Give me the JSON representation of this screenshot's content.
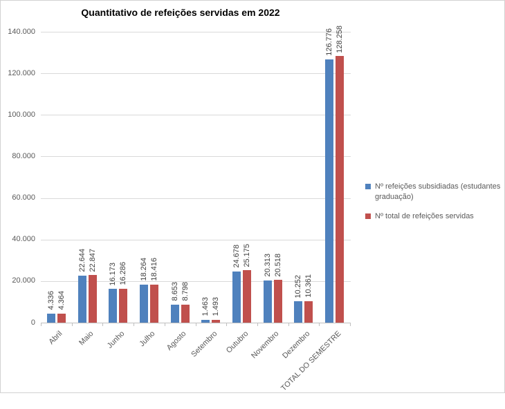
{
  "chart_data": {
    "type": "bar",
    "title": "Quantitativo de refeições servidas em 2022",
    "categories": [
      "Abril",
      "Maio",
      "Junho",
      "Julho",
      "Agosto",
      "Setembro",
      "Outubro",
      "Novembro",
      "Dezembro",
      "TOTAL DO SEMESTRE"
    ],
    "series": [
      {
        "name": "Nº refeições subsidiadas (estudantes graduação)",
        "color": "#4F81BD",
        "values": [
          4336,
          22644,
          16173,
          18264,
          8653,
          1463,
          24678,
          20313,
          10252,
          126776
        ],
        "labels": [
          "4.336",
          "22.644",
          "16.173",
          "18.264",
          "8.653",
          "1.463",
          "24.678",
          "20.313",
          "10.252",
          "126.776"
        ]
      },
      {
        "name": "Nº total de refeições servidas",
        "color": "#C0504D",
        "values": [
          4364,
          22847,
          16286,
          18416,
          8798,
          1493,
          25175,
          20518,
          10361,
          128258
        ],
        "labels": [
          "4.364",
          "22.847",
          "16.286",
          "18.416",
          "8.798",
          "1.493",
          "25.175",
          "20.518",
          "10.361",
          "128.258"
        ]
      }
    ],
    "y_axis": {
      "min": 0,
      "max": 140000,
      "step": 20000,
      "tick_labels": [
        "0",
        "20.000",
        "40.000",
        "60.000",
        "80.000",
        "100.000",
        "120.000",
        "140.000"
      ]
    },
    "xlabel": "",
    "ylabel": "",
    "grid": true,
    "legend_position": "right",
    "colors": {
      "gridline": "#d9d9d9",
      "axis_line": "#bfbfbf",
      "axis_text": "#595959",
      "data_label_text": "#404040",
      "title_text": "#000000"
    }
  }
}
